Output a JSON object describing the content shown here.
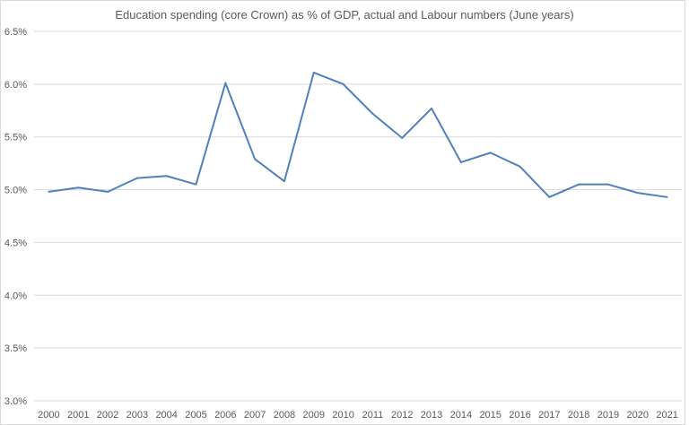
{
  "chart_data": {
    "type": "line",
    "title": "Education spending (core Crown) as % of GDP, actual and Labour numbers  (June years)",
    "xlabel": "",
    "ylabel": "",
    "categories": [
      "2000",
      "2001",
      "2002",
      "2003",
      "2004",
      "2005",
      "2006",
      "2007",
      "2008",
      "2009",
      "2010",
      "2011",
      "2012",
      "2013",
      "2014",
      "2015",
      "2016",
      "2017",
      "2018",
      "2019",
      "2020",
      "2021"
    ],
    "series": [
      {
        "values": [
          4.98,
          5.02,
          4.98,
          5.11,
          5.13,
          5.05,
          6.01,
          5.29,
          5.08,
          6.11,
          6.0,
          5.72,
          5.49,
          5.77,
          5.26,
          5.35,
          5.22,
          4.93,
          5.05,
          5.05,
          4.97,
          4.93
        ],
        "color": "#4f81bd"
      }
    ],
    "ylim": [
      3.0,
      6.5
    ],
    "yticks": [
      "3.0%",
      "3.5%",
      "4.0%",
      "4.5%",
      "5.0%",
      "5.5%",
      "6.0%",
      "6.5%"
    ],
    "ytick_values": [
      3.0,
      3.5,
      4.0,
      4.5,
      5.0,
      5.5,
      6.0,
      6.5
    ],
    "grid": true,
    "legend": "none"
  }
}
